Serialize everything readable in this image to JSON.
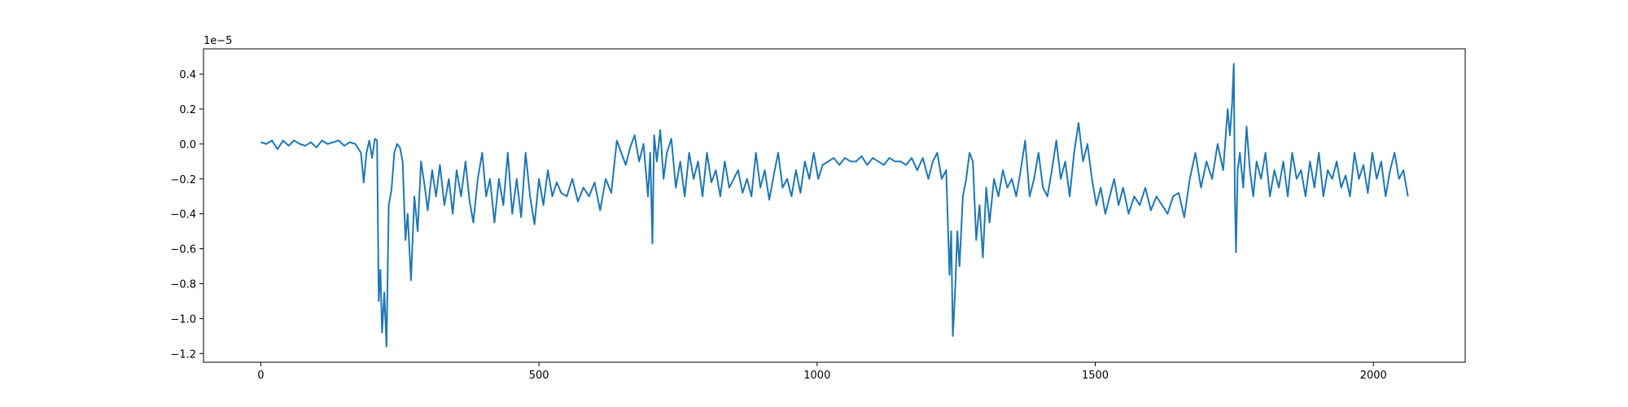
{
  "chart_data": {
    "type": "line",
    "y_offset_label": "1e−5",
    "x": [
      0,
      10,
      20,
      30,
      40,
      50,
      60,
      70,
      80,
      90,
      100,
      110,
      120,
      130,
      140,
      150,
      160,
      170,
      180,
      185,
      190,
      195,
      200,
      205,
      209,
      212,
      215,
      218,
      222,
      226,
      230,
      235,
      240,
      245,
      250,
      255,
      260,
      264,
      270,
      276,
      282,
      288,
      295,
      300,
      308,
      315,
      322,
      330,
      338,
      345,
      352,
      360,
      368,
      375,
      382,
      390,
      398,
      405,
      412,
      420,
      428,
      436,
      444,
      452,
      460,
      468,
      476,
      484,
      492,
      500,
      508,
      516,
      524,
      532,
      540,
      550,
      560,
      570,
      580,
      590,
      600,
      610,
      620,
      630,
      640,
      648,
      656,
      664,
      672,
      680,
      688,
      696,
      700,
      704,
      707,
      712,
      718,
      724,
      730,
      738,
      746,
      754,
      762,
      770,
      778,
      786,
      794,
      802,
      810,
      818,
      826,
      834,
      842,
      850,
      858,
      866,
      874,
      882,
      890,
      898,
      906,
      914,
      922,
      930,
      938,
      946,
      954,
      962,
      970,
      978,
      986,
      994,
      1002,
      1010,
      1020,
      1030,
      1040,
      1050,
      1060,
      1070,
      1080,
      1090,
      1100,
      1110,
      1120,
      1130,
      1140,
      1150,
      1160,
      1170,
      1180,
      1190,
      1200,
      1208,
      1216,
      1224,
      1232,
      1238,
      1241,
      1244,
      1248,
      1252,
      1256,
      1262,
      1268,
      1274,
      1280,
      1286,
      1292,
      1298,
      1304,
      1310,
      1318,
      1326,
      1334,
      1342,
      1350,
      1358,
      1366,
      1374,
      1382,
      1390,
      1398,
      1406,
      1414,
      1422,
      1430,
      1438,
      1446,
      1454,
      1462,
      1470,
      1478,
      1486,
      1494,
      1502,
      1510,
      1518,
      1526,
      1534,
      1542,
      1550,
      1560,
      1570,
      1580,
      1590,
      1600,
      1610,
      1620,
      1630,
      1640,
      1650,
      1660,
      1670,
      1680,
      1690,
      1700,
      1710,
      1720,
      1730,
      1738,
      1742,
      1746,
      1749,
      1751,
      1753,
      1756,
      1760,
      1766,
      1772,
      1778,
      1784,
      1790,
      1798,
      1806,
      1814,
      1822,
      1830,
      1838,
      1846,
      1854,
      1862,
      1870,
      1878,
      1886,
      1894,
      1902,
      1910,
      1918,
      1926,
      1934,
      1942,
      1950,
      1958,
      1966,
      1974,
      1982,
      1990,
      1998,
      2006,
      2014,
      2022,
      2030,
      2038,
      2046,
      2054,
      2062
    ],
    "series": [
      {
        "color": "#1f77b4",
        "values": [
          0.01,
          0.0,
          0.02,
          -0.03,
          0.02,
          -0.01,
          0.02,
          0.0,
          -0.01,
          0.01,
          -0.02,
          0.02,
          0.0,
          0.01,
          0.02,
          -0.01,
          0.01,
          0.0,
          -0.05,
          -0.22,
          -0.05,
          0.02,
          -0.08,
          0.03,
          0.02,
          -0.9,
          -0.72,
          -1.08,
          -0.85,
          -1.16,
          -0.35,
          -0.26,
          -0.05,
          0.0,
          -0.02,
          -0.1,
          -0.55,
          -0.4,
          -0.78,
          -0.3,
          -0.5,
          -0.1,
          -0.25,
          -0.38,
          -0.15,
          -0.3,
          -0.12,
          -0.35,
          -0.2,
          -0.4,
          -0.15,
          -0.3,
          -0.1,
          -0.32,
          -0.45,
          -0.2,
          -0.05,
          -0.3,
          -0.2,
          -0.45,
          -0.2,
          -0.35,
          -0.05,
          -0.4,
          -0.2,
          -0.42,
          -0.05,
          -0.3,
          -0.46,
          -0.2,
          -0.35,
          -0.15,
          -0.3,
          -0.22,
          -0.28,
          -0.3,
          -0.2,
          -0.33,
          -0.25,
          -0.3,
          -0.22,
          -0.38,
          -0.2,
          -0.28,
          0.02,
          -0.05,
          -0.12,
          -0.02,
          0.05,
          -0.1,
          0.0,
          -0.3,
          -0.05,
          -0.57,
          0.05,
          -0.1,
          0.08,
          -0.2,
          -0.05,
          0.03,
          -0.25,
          -0.1,
          -0.3,
          -0.05,
          -0.2,
          -0.1,
          -0.3,
          -0.05,
          -0.22,
          -0.15,
          -0.3,
          -0.1,
          -0.25,
          -0.2,
          -0.15,
          -0.28,
          -0.2,
          -0.3,
          -0.05,
          -0.25,
          -0.15,
          -0.32,
          -0.18,
          -0.05,
          -0.25,
          -0.2,
          -0.3,
          -0.15,
          -0.28,
          -0.1,
          -0.2,
          -0.05,
          -0.2,
          -0.12,
          -0.1,
          -0.08,
          -0.12,
          -0.08,
          -0.1,
          -0.1,
          -0.07,
          -0.12,
          -0.08,
          -0.1,
          -0.12,
          -0.08,
          -0.1,
          -0.1,
          -0.12,
          -0.08,
          -0.15,
          -0.08,
          -0.2,
          -0.1,
          -0.05,
          -0.2,
          -0.15,
          -0.75,
          -0.5,
          -1.1,
          -0.85,
          -0.5,
          -0.7,
          -0.3,
          -0.2,
          -0.05,
          -0.1,
          -0.55,
          -0.35,
          -0.65,
          -0.25,
          -0.45,
          -0.2,
          -0.3,
          -0.15,
          -0.25,
          -0.2,
          -0.3,
          -0.15,
          0.02,
          -0.3,
          -0.2,
          -0.05,
          -0.25,
          -0.3,
          -0.15,
          0.02,
          -0.2,
          -0.1,
          -0.3,
          -0.05,
          0.12,
          -0.1,
          0.0,
          -0.2,
          -0.35,
          -0.25,
          -0.4,
          -0.3,
          -0.2,
          -0.35,
          -0.25,
          -0.4,
          -0.3,
          -0.35,
          -0.25,
          -0.38,
          -0.3,
          -0.35,
          -0.4,
          -0.3,
          -0.28,
          -0.42,
          -0.2,
          -0.05,
          -0.25,
          -0.1,
          -0.2,
          0.0,
          -0.15,
          0.2,
          0.05,
          0.23,
          0.46,
          -0.3,
          -0.62,
          -0.15,
          -0.05,
          -0.25,
          0.1,
          -0.15,
          -0.3,
          -0.1,
          -0.2,
          -0.05,
          -0.3,
          -0.15,
          -0.25,
          -0.1,
          -0.3,
          -0.05,
          -0.2,
          -0.15,
          -0.3,
          -0.1,
          -0.25,
          -0.05,
          -0.3,
          -0.15,
          -0.2,
          -0.1,
          -0.25,
          -0.18,
          -0.3,
          -0.05,
          -0.2,
          -0.12,
          -0.28,
          -0.05,
          -0.2,
          -0.1,
          -0.3,
          -0.15,
          -0.05,
          -0.2,
          -0.15,
          -0.3
        ]
      }
    ],
    "xlim": [
      -103,
      2165
    ],
    "ylim": [
      -1.25,
      0.545
    ],
    "xticks": [
      0,
      500,
      1000,
      1500,
      2000
    ],
    "yticks": [
      {
        "value": -1.2,
        "label": "−1.2"
      },
      {
        "value": -1.0,
        "label": "−1.0"
      },
      {
        "value": -0.8,
        "label": "−0.8"
      },
      {
        "value": -0.6,
        "label": "−0.6"
      },
      {
        "value": -0.4,
        "label": "−0.4"
      },
      {
        "value": -0.2,
        "label": "−0.2"
      },
      {
        "value": 0.0,
        "label": "0.0"
      },
      0.2,
      0.4
    ]
  }
}
